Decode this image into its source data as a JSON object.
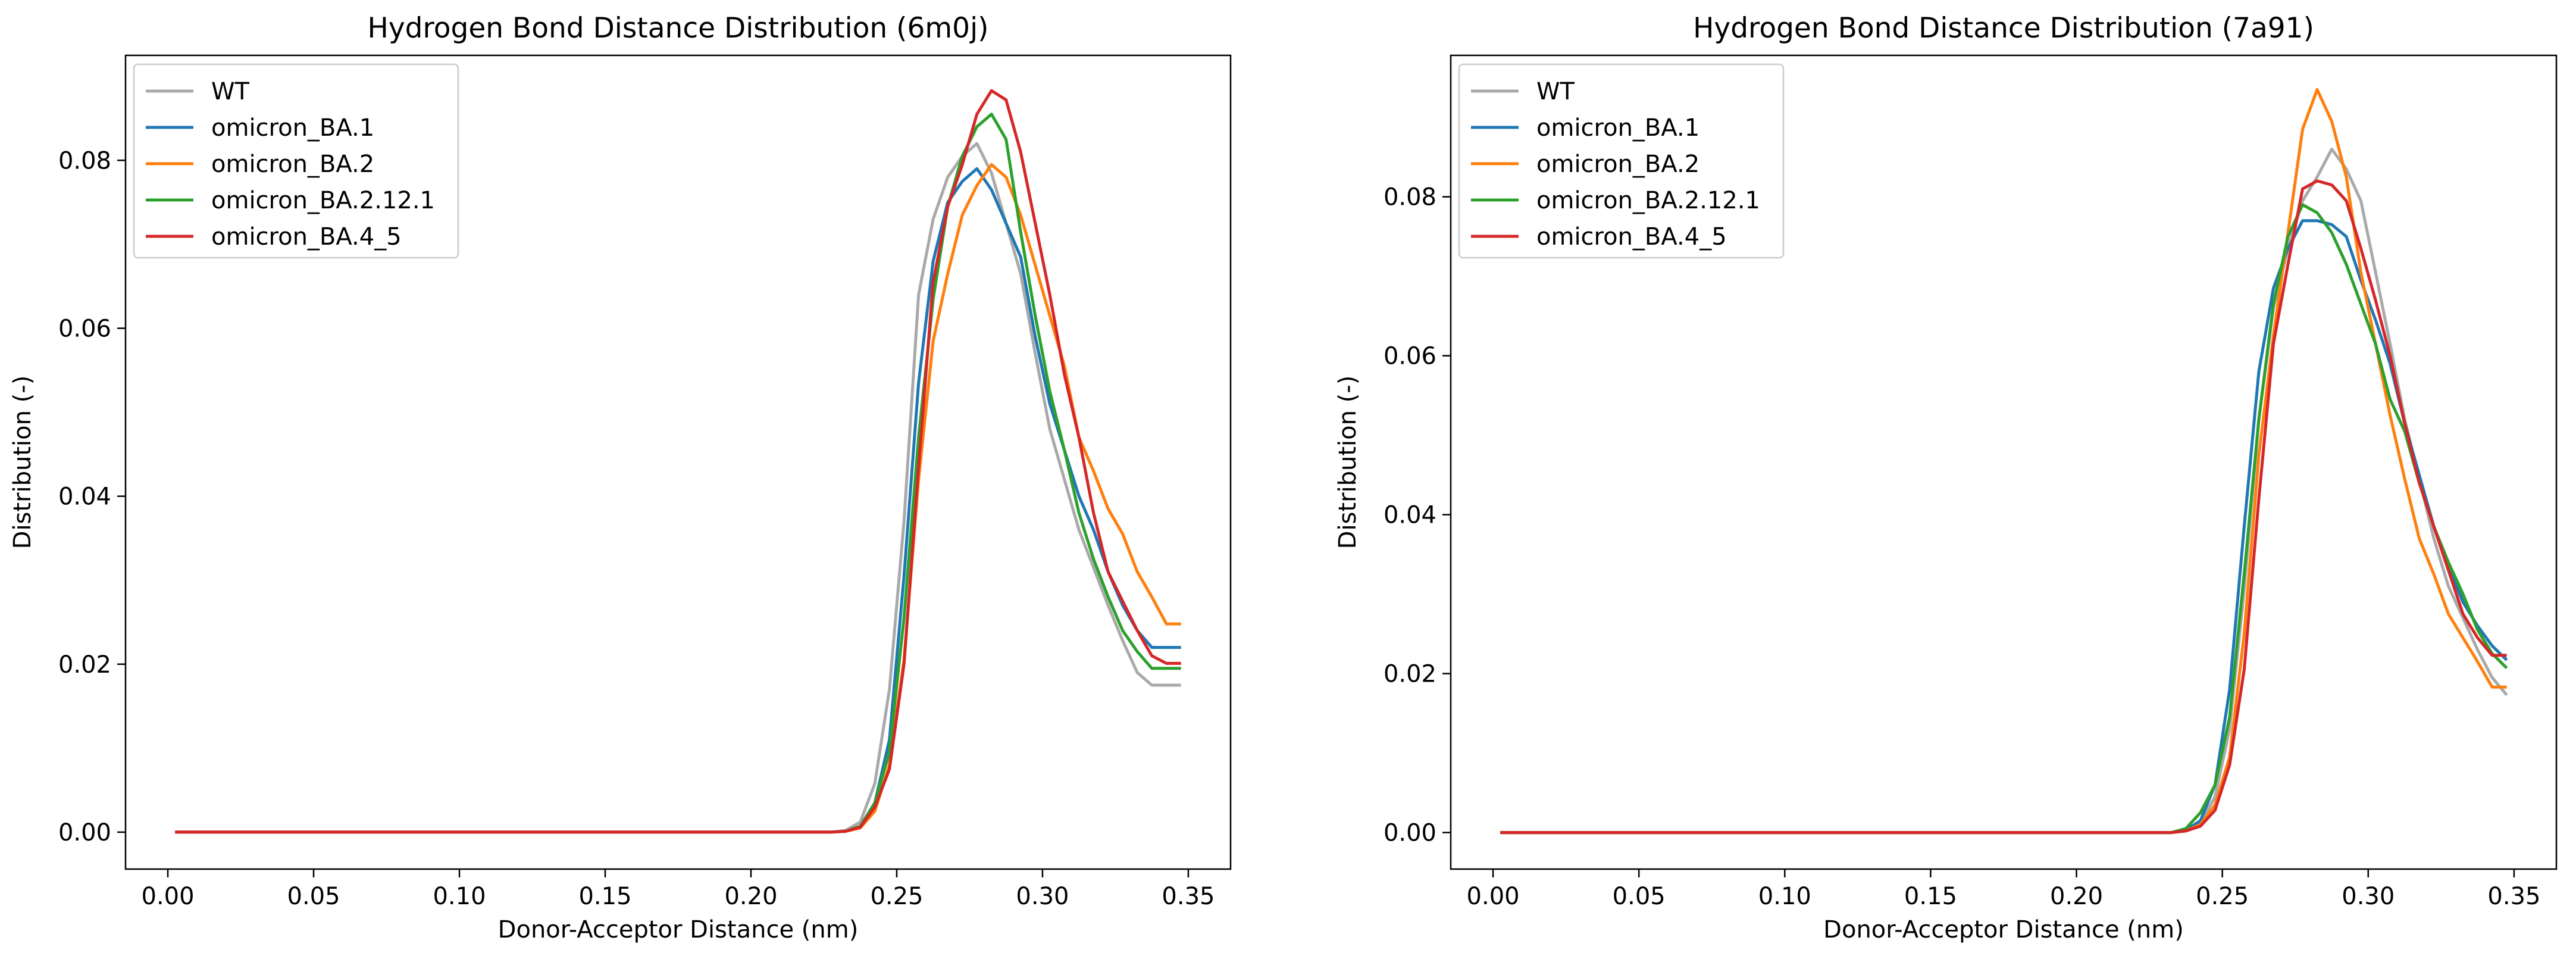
{
  "colors": {
    "WT": "#a9a9a9",
    "omicron_BA.1": "#1f77b4",
    "omicron_BA.2": "#ff7f0e",
    "omicron_BA.2.12.1": "#2ca02c",
    "omicron_BA.4_5": "#d62728"
  },
  "chart_data": [
    {
      "type": "line",
      "title": "Hydrogen Bond Distance Distribution (6m0j)",
      "xlabel": "Donor-Acceptor Distance (nm)",
      "ylabel": "Distribution (-)",
      "xlim": [
        -0.0145,
        0.3645
      ],
      "ylim": [
        -0.0044,
        0.0925
      ],
      "xticks": [
        0.0,
        0.05,
        0.1,
        0.15,
        0.2,
        0.25,
        0.3,
        0.35
      ],
      "xtick_labels": [
        "0.00",
        "0.05",
        "0.10",
        "0.15",
        "0.20",
        "0.25",
        "0.30",
        "0.35"
      ],
      "yticks": [
        0.0,
        0.02,
        0.04,
        0.06,
        0.08
      ],
      "ytick_labels": [
        "0.00",
        "0.02",
        "0.04",
        "0.06",
        "0.08"
      ],
      "legend_position": "upper-left",
      "x": [
        0.0025,
        0.0075,
        0.0125,
        0.0175,
        0.0225,
        0.0275,
        0.0325,
        0.0375,
        0.0425,
        0.0475,
        0.0525,
        0.0575,
        0.0625,
        0.0675,
        0.0725,
        0.0775,
        0.0825,
        0.0875,
        0.0925,
        0.0975,
        0.1025,
        0.1075,
        0.1125,
        0.1175,
        0.1225,
        0.1275,
        0.1325,
        0.1375,
        0.1425,
        0.1475,
        0.1525,
        0.1575,
        0.1625,
        0.1675,
        0.1725,
        0.1775,
        0.1825,
        0.1875,
        0.1925,
        0.1975,
        0.2025,
        0.2075,
        0.2125,
        0.2175,
        0.2225,
        0.2275,
        0.2325,
        0.2375,
        0.2425,
        0.2475,
        0.2525,
        0.2575,
        0.2625,
        0.2675,
        0.2725,
        0.2775,
        0.2825,
        0.2875,
        0.2925,
        0.2975,
        0.3025,
        0.3075,
        0.3125,
        0.3175,
        0.3225,
        0.3275,
        0.3325,
        0.3375,
        0.3425,
        0.3475
      ],
      "series": [
        {
          "name": "WT",
          "values": [
            0,
            0,
            0,
            0,
            0,
            0,
            0,
            0,
            0,
            0,
            0,
            0,
            0,
            0,
            0,
            0,
            0,
            0,
            0,
            0,
            0,
            0,
            0,
            0,
            0,
            0,
            0,
            0,
            0,
            0,
            0,
            0,
            0,
            0,
            0,
            0,
            0,
            0,
            0,
            0,
            0,
            0,
            0,
            0,
            0,
            0,
            0.0002,
            0.0012,
            0.0058,
            0.017,
            0.037,
            0.064,
            0.073,
            0.078,
            0.0805,
            0.082,
            0.0785,
            0.0725,
            0.0665,
            0.057,
            0.048,
            0.042,
            0.036,
            0.0315,
            0.027,
            0.0228,
            0.019,
            0.0175,
            0.0175,
            0.0175
          ]
        },
        {
          "name": "omicron_BA.1",
          "values": [
            0,
            0,
            0,
            0,
            0,
            0,
            0,
            0,
            0,
            0,
            0,
            0,
            0,
            0,
            0,
            0,
            0,
            0,
            0,
            0,
            0,
            0,
            0,
            0,
            0,
            0,
            0,
            0,
            0,
            0,
            0,
            0,
            0,
            0,
            0,
            0,
            0,
            0,
            0,
            0,
            0,
            0,
            0,
            0,
            0,
            0,
            0.0001,
            0.0007,
            0.0035,
            0.011,
            0.0305,
            0.0535,
            0.068,
            0.075,
            0.0775,
            0.079,
            0.0765,
            0.0725,
            0.0685,
            0.059,
            0.051,
            0.0455,
            0.04,
            0.036,
            0.031,
            0.027,
            0.024,
            0.022,
            0.022,
            0.022
          ]
        },
        {
          "name": "omicron_BA.2",
          "values": [
            0,
            0,
            0,
            0,
            0,
            0,
            0,
            0,
            0,
            0,
            0,
            0,
            0,
            0,
            0,
            0,
            0,
            0,
            0,
            0,
            0,
            0,
            0,
            0,
            0,
            0,
            0,
            0,
            0,
            0,
            0,
            0,
            0,
            0,
            0,
            0,
            0,
            0,
            0,
            0,
            0,
            0,
            0,
            0,
            0,
            0,
            0.0001,
            0.0005,
            0.0025,
            0.008,
            0.0205,
            0.042,
            0.0585,
            0.0665,
            0.0735,
            0.077,
            0.0795,
            0.078,
            0.0735,
            0.0675,
            0.0615,
            0.0555,
            0.047,
            0.043,
            0.0385,
            0.0355,
            0.031,
            0.028,
            0.0248,
            0.0248
          ]
        },
        {
          "name": "omicron_BA.2.12.1",
          "values": [
            0,
            0,
            0,
            0,
            0,
            0,
            0,
            0,
            0,
            0,
            0,
            0,
            0,
            0,
            0,
            0,
            0,
            0,
            0,
            0,
            0,
            0,
            0,
            0,
            0,
            0,
            0,
            0,
            0,
            0,
            0,
            0,
            0,
            0,
            0,
            0,
            0,
            0,
            0,
            0,
            0,
            0,
            0,
            0,
            0,
            0,
            0.0001,
            0.0007,
            0.0035,
            0.0095,
            0.0255,
            0.047,
            0.0635,
            0.0745,
            0.0805,
            0.084,
            0.0855,
            0.0825,
            0.0715,
            0.0615,
            0.0525,
            0.0455,
            0.038,
            0.0325,
            0.028,
            0.024,
            0.0215,
            0.0195,
            0.0195,
            0.0195
          ]
        },
        {
          "name": "omicron_BA.4_5",
          "values": [
            0,
            0,
            0,
            0,
            0,
            0,
            0,
            0,
            0,
            0,
            0,
            0,
            0,
            0,
            0,
            0,
            0,
            0,
            0,
            0,
            0,
            0,
            0,
            0,
            0,
            0,
            0,
            0,
            0,
            0,
            0,
            0,
            0,
            0,
            0,
            0,
            0,
            0,
            0,
            0,
            0,
            0,
            0,
            0,
            0,
            0,
            0.0001,
            0.0006,
            0.003,
            0.0075,
            0.02,
            0.0435,
            0.0655,
            0.0745,
            0.0795,
            0.0855,
            0.0883,
            0.0872,
            0.081,
            0.0725,
            0.064,
            0.0545,
            0.047,
            0.038,
            0.031,
            0.0275,
            0.024,
            0.021,
            0.0201,
            0.0201
          ]
        }
      ]
    },
    {
      "type": "line",
      "title": "Hydrogen Bond Distance Distribution (7a91)",
      "xlabel": "Donor-Acceptor Distance (nm)",
      "ylabel": "Distribution (-)",
      "xlim": [
        -0.0145,
        0.3645
      ],
      "ylim": [
        -0.0046,
        0.0978
      ],
      "xticks": [
        0.0,
        0.05,
        0.1,
        0.15,
        0.2,
        0.25,
        0.3,
        0.35
      ],
      "xtick_labels": [
        "0.00",
        "0.05",
        "0.10",
        "0.15",
        "0.20",
        "0.25",
        "0.30",
        "0.35"
      ],
      "yticks": [
        0.0,
        0.02,
        0.04,
        0.06,
        0.08
      ],
      "ytick_labels": [
        "0.00",
        "0.02",
        "0.04",
        "0.06",
        "0.08"
      ],
      "legend_position": "upper-left",
      "x": [
        0.0025,
        0.0075,
        0.0125,
        0.0175,
        0.0225,
        0.0275,
        0.0325,
        0.0375,
        0.0425,
        0.0475,
        0.0525,
        0.0575,
        0.0625,
        0.0675,
        0.0725,
        0.0775,
        0.0825,
        0.0875,
        0.0925,
        0.0975,
        0.1025,
        0.1075,
        0.1125,
        0.1175,
        0.1225,
        0.1275,
        0.1325,
        0.1375,
        0.1425,
        0.1475,
        0.1525,
        0.1575,
        0.1625,
        0.1675,
        0.1725,
        0.1775,
        0.1825,
        0.1875,
        0.1925,
        0.1975,
        0.2025,
        0.2075,
        0.2125,
        0.2175,
        0.2225,
        0.2275,
        0.2325,
        0.2375,
        0.2425,
        0.2475,
        0.2525,
        0.2575,
        0.2625,
        0.2675,
        0.2725,
        0.2775,
        0.2825,
        0.2875,
        0.2925,
        0.2975,
        0.3025,
        0.3075,
        0.3125,
        0.3175,
        0.3225,
        0.3275,
        0.3325,
        0.3375,
        0.3425,
        0.3475
      ],
      "series": [
        {
          "name": "WT",
          "values": [
            0,
            0,
            0,
            0,
            0,
            0,
            0,
            0,
            0,
            0,
            0,
            0,
            0,
            0,
            0,
            0,
            0,
            0,
            0,
            0,
            0,
            0,
            0,
            0,
            0,
            0,
            0,
            0,
            0,
            0,
            0,
            0,
            0,
            0,
            0,
            0,
            0,
            0,
            0,
            0,
            0,
            0,
            0,
            0,
            0,
            0,
            0,
            0.0003,
            0.0012,
            0.0045,
            0.013,
            0.0305,
            0.052,
            0.066,
            0.0735,
            0.0795,
            0.0825,
            0.086,
            0.0835,
            0.0795,
            0.0705,
            0.0615,
            0.052,
            0.0445,
            0.037,
            0.031,
            0.027,
            0.023,
            0.0195,
            0.0173
          ]
        },
        {
          "name": "omicron_BA.1",
          "values": [
            0,
            0,
            0,
            0,
            0,
            0,
            0,
            0,
            0,
            0,
            0,
            0,
            0,
            0,
            0,
            0,
            0,
            0,
            0,
            0,
            0,
            0,
            0,
            0,
            0,
            0,
            0,
            0,
            0,
            0,
            0,
            0,
            0,
            0,
            0,
            0,
            0,
            0,
            0,
            0,
            0,
            0,
            0,
            0,
            0,
            0,
            0,
            0.0003,
            0.0015,
            0.006,
            0.018,
            0.0385,
            0.058,
            0.0685,
            0.0735,
            0.077,
            0.077,
            0.0765,
            0.075,
            0.0695,
            0.0645,
            0.059,
            0.0515,
            0.045,
            0.0385,
            0.0335,
            0.029,
            0.026,
            0.0235,
            0.0217
          ]
        },
        {
          "name": "omicron_BA.2",
          "values": [
            0,
            0,
            0,
            0,
            0,
            0,
            0,
            0,
            0,
            0,
            0,
            0,
            0,
            0,
            0,
            0,
            0,
            0,
            0,
            0,
            0,
            0,
            0,
            0,
            0,
            0,
            0,
            0,
            0,
            0,
            0,
            0,
            0,
            0,
            0,
            0,
            0,
            0,
            0,
            0,
            0,
            0,
            0,
            0,
            0,
            0,
            0,
            0.0002,
            0.001,
            0.0035,
            0.0095,
            0.025,
            0.0475,
            0.0625,
            0.0755,
            0.0885,
            0.0935,
            0.0895,
            0.0825,
            0.0705,
            0.0615,
            0.0525,
            0.0445,
            0.037,
            0.0325,
            0.0275,
            0.0245,
            0.0215,
            0.0183,
            0.0183
          ]
        },
        {
          "name": "omicron_BA.2.12.1",
          "values": [
            0,
            0,
            0,
            0,
            0,
            0,
            0,
            0,
            0,
            0,
            0,
            0,
            0,
            0,
            0,
            0,
            0,
            0,
            0,
            0,
            0,
            0,
            0,
            0,
            0,
            0,
            0,
            0,
            0,
            0,
            0,
            0,
            0,
            0,
            0,
            0,
            0,
            0,
            0,
            0,
            0,
            0,
            0,
            0,
            0,
            0,
            0,
            0.0005,
            0.0025,
            0.006,
            0.0145,
            0.0325,
            0.052,
            0.0665,
            0.075,
            0.079,
            0.078,
            0.0755,
            0.0715,
            0.0665,
            0.0615,
            0.0545,
            0.0505,
            0.044,
            0.0385,
            0.034,
            0.03,
            0.0255,
            0.0225,
            0.0207
          ]
        },
        {
          "name": "omicron_BA.4_5",
          "values": [
            0,
            0,
            0,
            0,
            0,
            0,
            0,
            0,
            0,
            0,
            0,
            0,
            0,
            0,
            0,
            0,
            0,
            0,
            0,
            0,
            0,
            0,
            0,
            0,
            0,
            0,
            0,
            0,
            0,
            0,
            0,
            0,
            0,
            0,
            0,
            0,
            0,
            0,
            0,
            0,
            0,
            0,
            0,
            0,
            0,
            0,
            0,
            0.0002,
            0.0008,
            0.0028,
            0.0085,
            0.0205,
            0.042,
            0.0615,
            0.0715,
            0.081,
            0.082,
            0.0815,
            0.0795,
            0.0735,
            0.067,
            0.06,
            0.0515,
            0.044,
            0.0385,
            0.033,
            0.0275,
            0.0245,
            0.0223,
            0.0223
          ]
        }
      ]
    }
  ]
}
